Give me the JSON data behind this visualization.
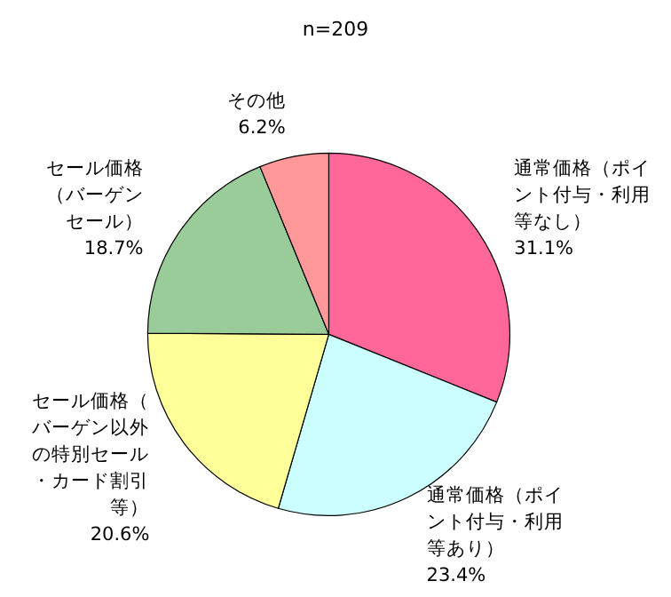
{
  "chart_data": {
    "type": "pie",
    "title": "n=209",
    "categories": [
      "通常価格（ポイント付与・利用等なし）",
      "通常価格（ポイント付与・利用等あり）",
      "セール価格（バーゲン以外の特別セール・カード割引等）",
      "セール価格（バーゲンセール）",
      "その他"
    ],
    "values": [
      31.1,
      23.4,
      20.6,
      18.7,
      6.2
    ],
    "value_labels": [
      "31.1%",
      "23.4%",
      "20.6%",
      "18.7%",
      "6.2%"
    ],
    "colors": [
      "#ff6699",
      "#ccffff",
      "#ffff99",
      "#99cc99",
      "#ff9999"
    ]
  }
}
